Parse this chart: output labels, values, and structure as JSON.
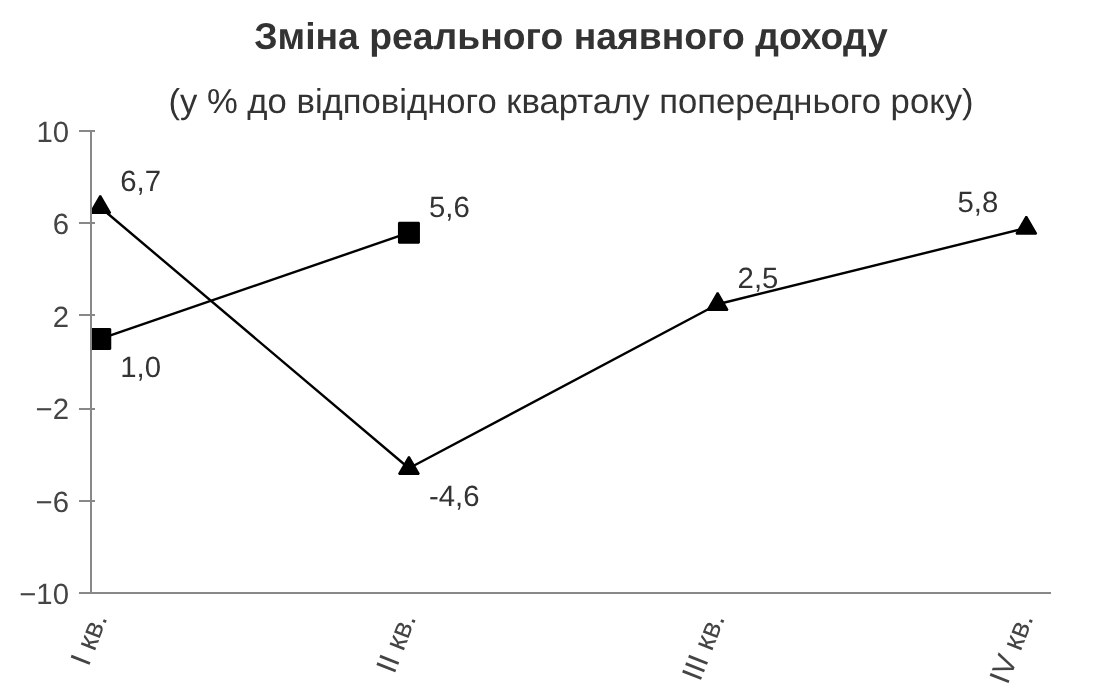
{
  "chart_data": {
    "type": "line",
    "title": "Зміна реального наявного доходу",
    "subtitle": "(у % до відповідного кварталу попереднього року)",
    "categories": [
      "I кв.",
      "II кв.",
      "III кв.",
      "IV кв."
    ],
    "series": [
      {
        "color": "#000000",
        "marker": "triangle",
        "values": [
          6.7,
          -4.6,
          2.5,
          5.8
        ],
        "value_labels": [
          "6,7",
          "-4,6",
          "2,5",
          "5,8"
        ]
      },
      {
        "color": "#000000",
        "marker": "square",
        "values": [
          1.0,
          5.6,
          null,
          null
        ],
        "value_labels": [
          "1,0",
          "5,6",
          null,
          null
        ]
      }
    ],
    "ylim": [
      -10,
      10
    ],
    "yticks": [
      -10,
      -6,
      -2,
      2,
      6,
      10
    ],
    "grid": false
  }
}
